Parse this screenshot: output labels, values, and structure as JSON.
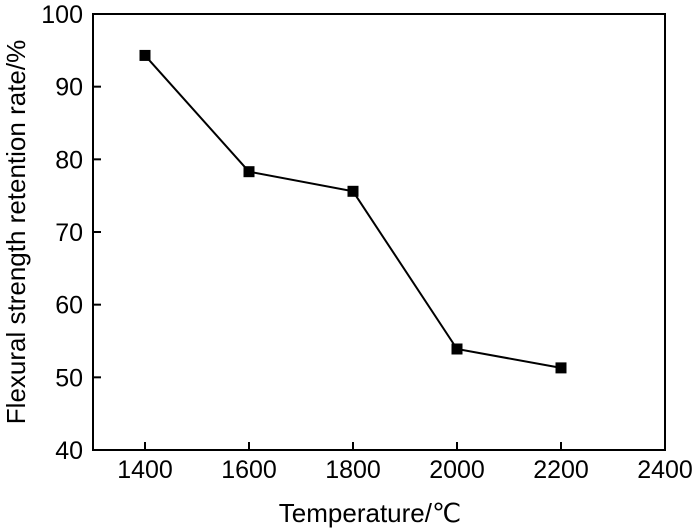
{
  "chart_data": {
    "type": "line",
    "title": "",
    "xlabel": "Temperature/℃",
    "ylabel": "Flexural strength retention rate/%",
    "xlim": [
      1300,
      2400
    ],
    "ylim": [
      40,
      100
    ],
    "x_ticks": [
      1400,
      1600,
      1800,
      2000,
      2200,
      2400
    ],
    "y_ticks": [
      40,
      50,
      60,
      70,
      80,
      90,
      100
    ],
    "grid": false,
    "legend": "none",
    "series": [
      {
        "x": [
          1400,
          1600,
          1800,
          2000,
          2200
        ],
        "y": [
          94.3,
          78.3,
          75.6,
          53.9,
          51.3
        ],
        "marker": "square",
        "color": "#000000"
      }
    ]
  }
}
